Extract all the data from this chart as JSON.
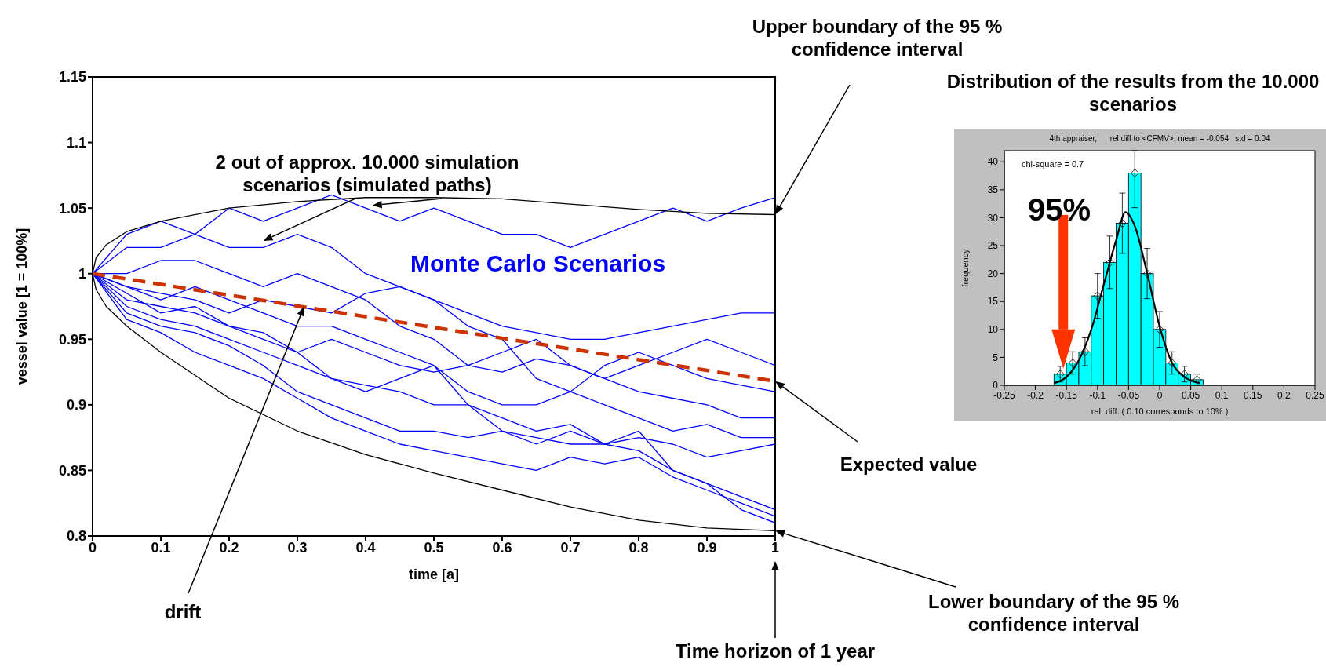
{
  "chart_data": [
    {
      "type": "line",
      "xlabel": "time [a]",
      "ylabel": "vessel value [1 = 100%]",
      "x": [
        0,
        0.05,
        0.1,
        0.15,
        0.2,
        0.25,
        0.3,
        0.35,
        0.4,
        0.45,
        0.5,
        0.55,
        0.6,
        0.65,
        0.7,
        0.75,
        0.8,
        0.85,
        0.9,
        0.95,
        1
      ],
      "series": [
        {
          "color": "#0000ff",
          "values": [
            1,
            1.03,
            1.04,
            1.03,
            1.05,
            1.04,
            1.05,
            1.06,
            1.05,
            1.04,
            1.05,
            1.04,
            1.03,
            1.03,
            1.02,
            1.03,
            1.04,
            1.05,
            1.04,
            1.05,
            1.058
          ]
        },
        {
          "color": "#0000ff",
          "values": [
            1,
            1.02,
            1.02,
            1.03,
            1.02,
            1.02,
            1.03,
            1.02,
            1.0,
            0.99,
            0.98,
            0.97,
            0.96,
            0.955,
            0.95,
            0.95,
            0.955,
            0.96,
            0.965,
            0.97,
            0.97
          ]
        },
        {
          "color": "#0000ff",
          "values": [
            1,
            1.0,
            1.01,
            1.01,
            1.0,
            0.99,
            1.0,
            0.99,
            0.98,
            0.96,
            0.95,
            0.93,
            0.94,
            0.95,
            0.93,
            0.92,
            0.93,
            0.94,
            0.95,
            0.94,
            0.93
          ]
        },
        {
          "color": "#0000ff",
          "values": [
            1,
            0.99,
            0.985,
            0.98,
            0.97,
            0.98,
            0.975,
            0.97,
            0.985,
            0.99,
            0.98,
            0.96,
            0.95,
            0.92,
            0.91,
            0.93,
            0.94,
            0.93,
            0.92,
            0.915,
            0.91
          ]
        },
        {
          "color": "#0000ff",
          "values": [
            1,
            0.985,
            0.97,
            0.975,
            0.96,
            0.95,
            0.94,
            0.95,
            0.94,
            0.93,
            0.925,
            0.93,
            0.925,
            0.935,
            0.93,
            0.92,
            0.91,
            0.905,
            0.9,
            0.89,
            0.89
          ]
        },
        {
          "color": "#0000ff",
          "values": [
            1,
            0.98,
            0.975,
            0.97,
            0.96,
            0.955,
            0.94,
            0.92,
            0.91,
            0.92,
            0.93,
            0.91,
            0.9,
            0.9,
            0.91,
            0.9,
            0.89,
            0.88,
            0.885,
            0.875,
            0.875
          ]
        },
        {
          "color": "#0000ff",
          "values": [
            1,
            0.975,
            0.965,
            0.96,
            0.95,
            0.94,
            0.93,
            0.92,
            0.915,
            0.91,
            0.9,
            0.9,
            0.89,
            0.88,
            0.885,
            0.87,
            0.875,
            0.87,
            0.86,
            0.865,
            0.87
          ]
        },
        {
          "color": "#0000ff",
          "values": [
            1,
            0.97,
            0.96,
            0.955,
            0.945,
            0.93,
            0.91,
            0.9,
            0.89,
            0.88,
            0.88,
            0.875,
            0.88,
            0.87,
            0.88,
            0.87,
            0.865,
            0.85,
            0.84,
            0.83,
            0.82
          ]
        },
        {
          "color": "#0000ff",
          "values": [
            1,
            0.965,
            0.955,
            0.94,
            0.93,
            0.92,
            0.905,
            0.89,
            0.88,
            0.87,
            0.865,
            0.86,
            0.855,
            0.85,
            0.86,
            0.855,
            0.86,
            0.845,
            0.835,
            0.825,
            0.815
          ]
        },
        {
          "color": "#0000ff",
          "values": [
            1,
            0.99,
            0.98,
            0.99,
            0.98,
            0.97,
            0.96,
            0.96,
            0.95,
            0.94,
            0.93,
            0.9,
            0.88,
            0.875,
            0.87,
            0.87,
            0.88,
            0.85,
            0.84,
            0.82,
            0.81
          ]
        },
        {
          "color": "#000000",
          "x": [
            1,
            0.9,
            0.8,
            0.7,
            0.6,
            0.5,
            0.4,
            0.3,
            0.2,
            0.1,
            0.05,
            0.02,
            0.005,
            0,
            0.005,
            0.02,
            0.05,
            0.1,
            0.2,
            0.3,
            0.4,
            0.5,
            0.6,
            0.7,
            0.8,
            0.9,
            1
          ],
          "values": [
            1.045,
            1.046,
            1.049,
            1.053,
            1.057,
            1.058,
            1.058,
            1.055,
            1.05,
            1.04,
            1.032,
            1.022,
            1.012,
            1,
            0.988,
            0.975,
            0.96,
            0.94,
            0.905,
            0.88,
            0.862,
            0.848,
            0.835,
            0.822,
            0.812,
            0.806,
            0.804
          ]
        },
        {
          "color": "#cc3300",
          "line_style": "dashed",
          "x": [
            0,
            1
          ],
          "values": [
            1,
            0.918
          ]
        }
      ],
      "xlim": [
        0,
        1
      ],
      "xticks": [
        0,
        0.1,
        0.2,
        0.3,
        0.4,
        0.5,
        0.6,
        0.7,
        0.8,
        0.9,
        1
      ],
      "ylim": [
        0.8,
        1.15
      ],
      "yticks": [
        0.8,
        0.85,
        0.9,
        0.95,
        1,
        1.05,
        1.1,
        1.15
      ],
      "annotations": [
        "Upper boundary of the 95 % confidence interval",
        "2 out of approx. 10.000 simulation scenarios (simulated paths)",
        "Monte Carlo Scenarios",
        "Expected value",
        "drift",
        "Lower boundary of the 95 % confidence interval",
        "Time horizon of 1 year"
      ]
    },
    {
      "type": "histogram",
      "title": "Distribution of the results from the 10.000 scenarios",
      "subtitle": "4th appraiser,      rel diff to <CFMV>: mean = -0.054   std = 0.04",
      "xlabel": "rel. diff.  ( 0.10 corresponds to 10% )",
      "ylabel": "frequency",
      "series": [
        {
          "type": "histogram",
          "color": "#00ffff",
          "bins": [
            -0.17,
            -0.15,
            -0.13,
            -0.11,
            -0.09,
            -0.07,
            -0.05,
            -0.03,
            -0.01,
            0.01,
            0.03,
            0.05,
            0.07
          ],
          "values": [
            2,
            4,
            6,
            16,
            22,
            29,
            38,
            20,
            10,
            4,
            2,
            1
          ],
          "errors": [
            1.4,
            2,
            2.5,
            4,
            4.7,
            5.4,
            [
              31.8,
              42
            ],
            4.5,
            3.2,
            2,
            1.4,
            1
          ]
        },
        {
          "type": "scatter",
          "color": "#000000",
          "marker": "diamond",
          "x": [
            -0.16,
            -0.14,
            -0.12,
            -0.1,
            -0.08,
            -0.06,
            -0.04,
            -0.02,
            0,
            0.02,
            0.04,
            0.06
          ],
          "values": [
            2,
            4,
            6,
            16,
            22,
            29,
            38,
            20,
            10,
            4,
            2,
            1
          ]
        },
        {
          "type": "line",
          "color": "#000000",
          "x": [
            -0.17,
            -0.15,
            -0.13,
            -0.11,
            -0.09,
            -0.07,
            -0.055,
            -0.04,
            -0.02,
            0,
            0.02,
            0.04,
            0.065
          ],
          "values": [
            0.4,
            1.5,
            4.5,
            10,
            18,
            26,
            31,
            28.5,
            20,
            10.5,
            4,
            1.5,
            0.4
          ]
        }
      ],
      "xlim": [
        -0.25,
        0.25
      ],
      "xticks": [
        -0.25,
        -0.2,
        -0.15,
        -0.1,
        -0.05,
        0,
        0.05,
        0.1,
        0.15,
        0.2,
        0.25
      ],
      "ylim": [
        0,
        42
      ],
      "yticks": [
        0,
        5,
        10,
        15,
        20,
        25,
        30,
        35,
        40
      ],
      "annotations": [
        "chi-square = 0.7",
        "95%"
      ]
    }
  ]
}
